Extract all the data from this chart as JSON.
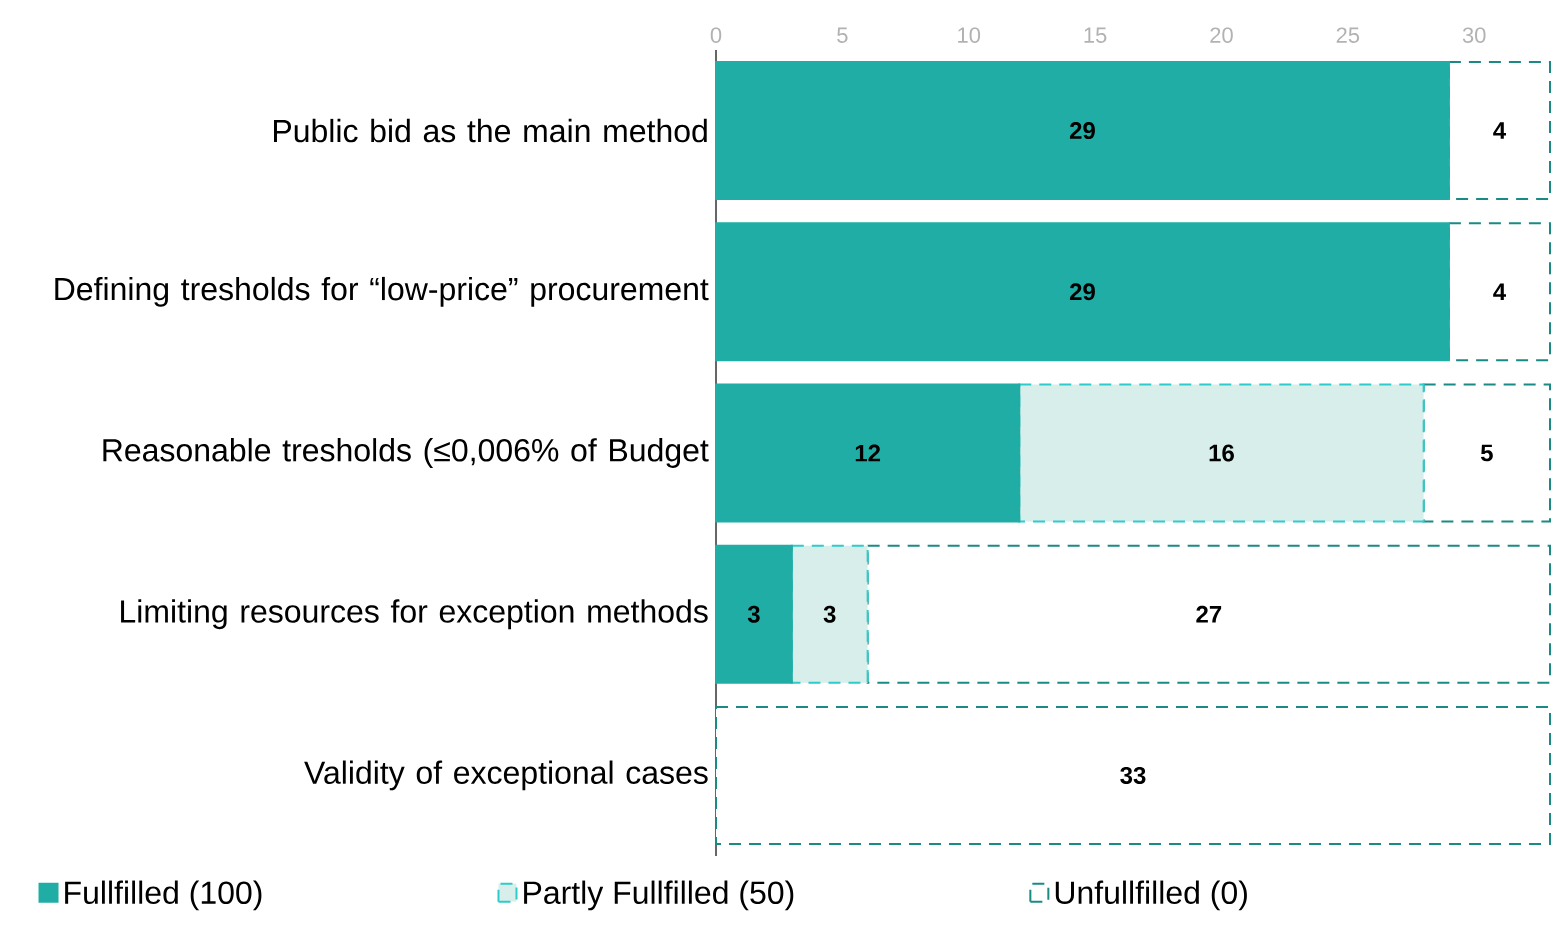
{
  "chart_data": {
    "type": "bar",
    "orientation": "horizontal",
    "stacked": true,
    "categories": [
      "Public bid as the main method",
      "Defining tresholds for “low-price” procurement",
      "Reasonable tresholds (≤0,006%  of Budget",
      "Limiting resources for exception methods",
      "Validity of exceptional cases"
    ],
    "series": [
      {
        "name": "Fullfilled (100)",
        "color": "#20ada5",
        "line_style": "solid",
        "values": [
          29,
          29,
          12,
          3,
          0
        ],
        "value_labels": [
          "29",
          "29",
          "12",
          "3",
          null
        ]
      },
      {
        "name": "Partly Fullfilled (50)",
        "color": "#d8eeeb",
        "line_style": "dashed",
        "values": [
          0,
          0,
          16,
          3,
          0
        ],
        "value_labels": [
          null,
          null,
          "16",
          "3",
          null
        ]
      },
      {
        "name": "Unfullfilled (0)",
        "color": "#ffffff",
        "line_style": "dashed",
        "values": [
          4,
          4,
          5,
          27,
          33
        ],
        "value_labels": [
          "4",
          "4",
          "5",
          "27",
          "33"
        ]
      }
    ],
    "xlim": [
      0,
      33
    ],
    "xticks": [
      0,
      5,
      10,
      15,
      20,
      25,
      30
    ],
    "grid": false,
    "legend": "bottom"
  }
}
